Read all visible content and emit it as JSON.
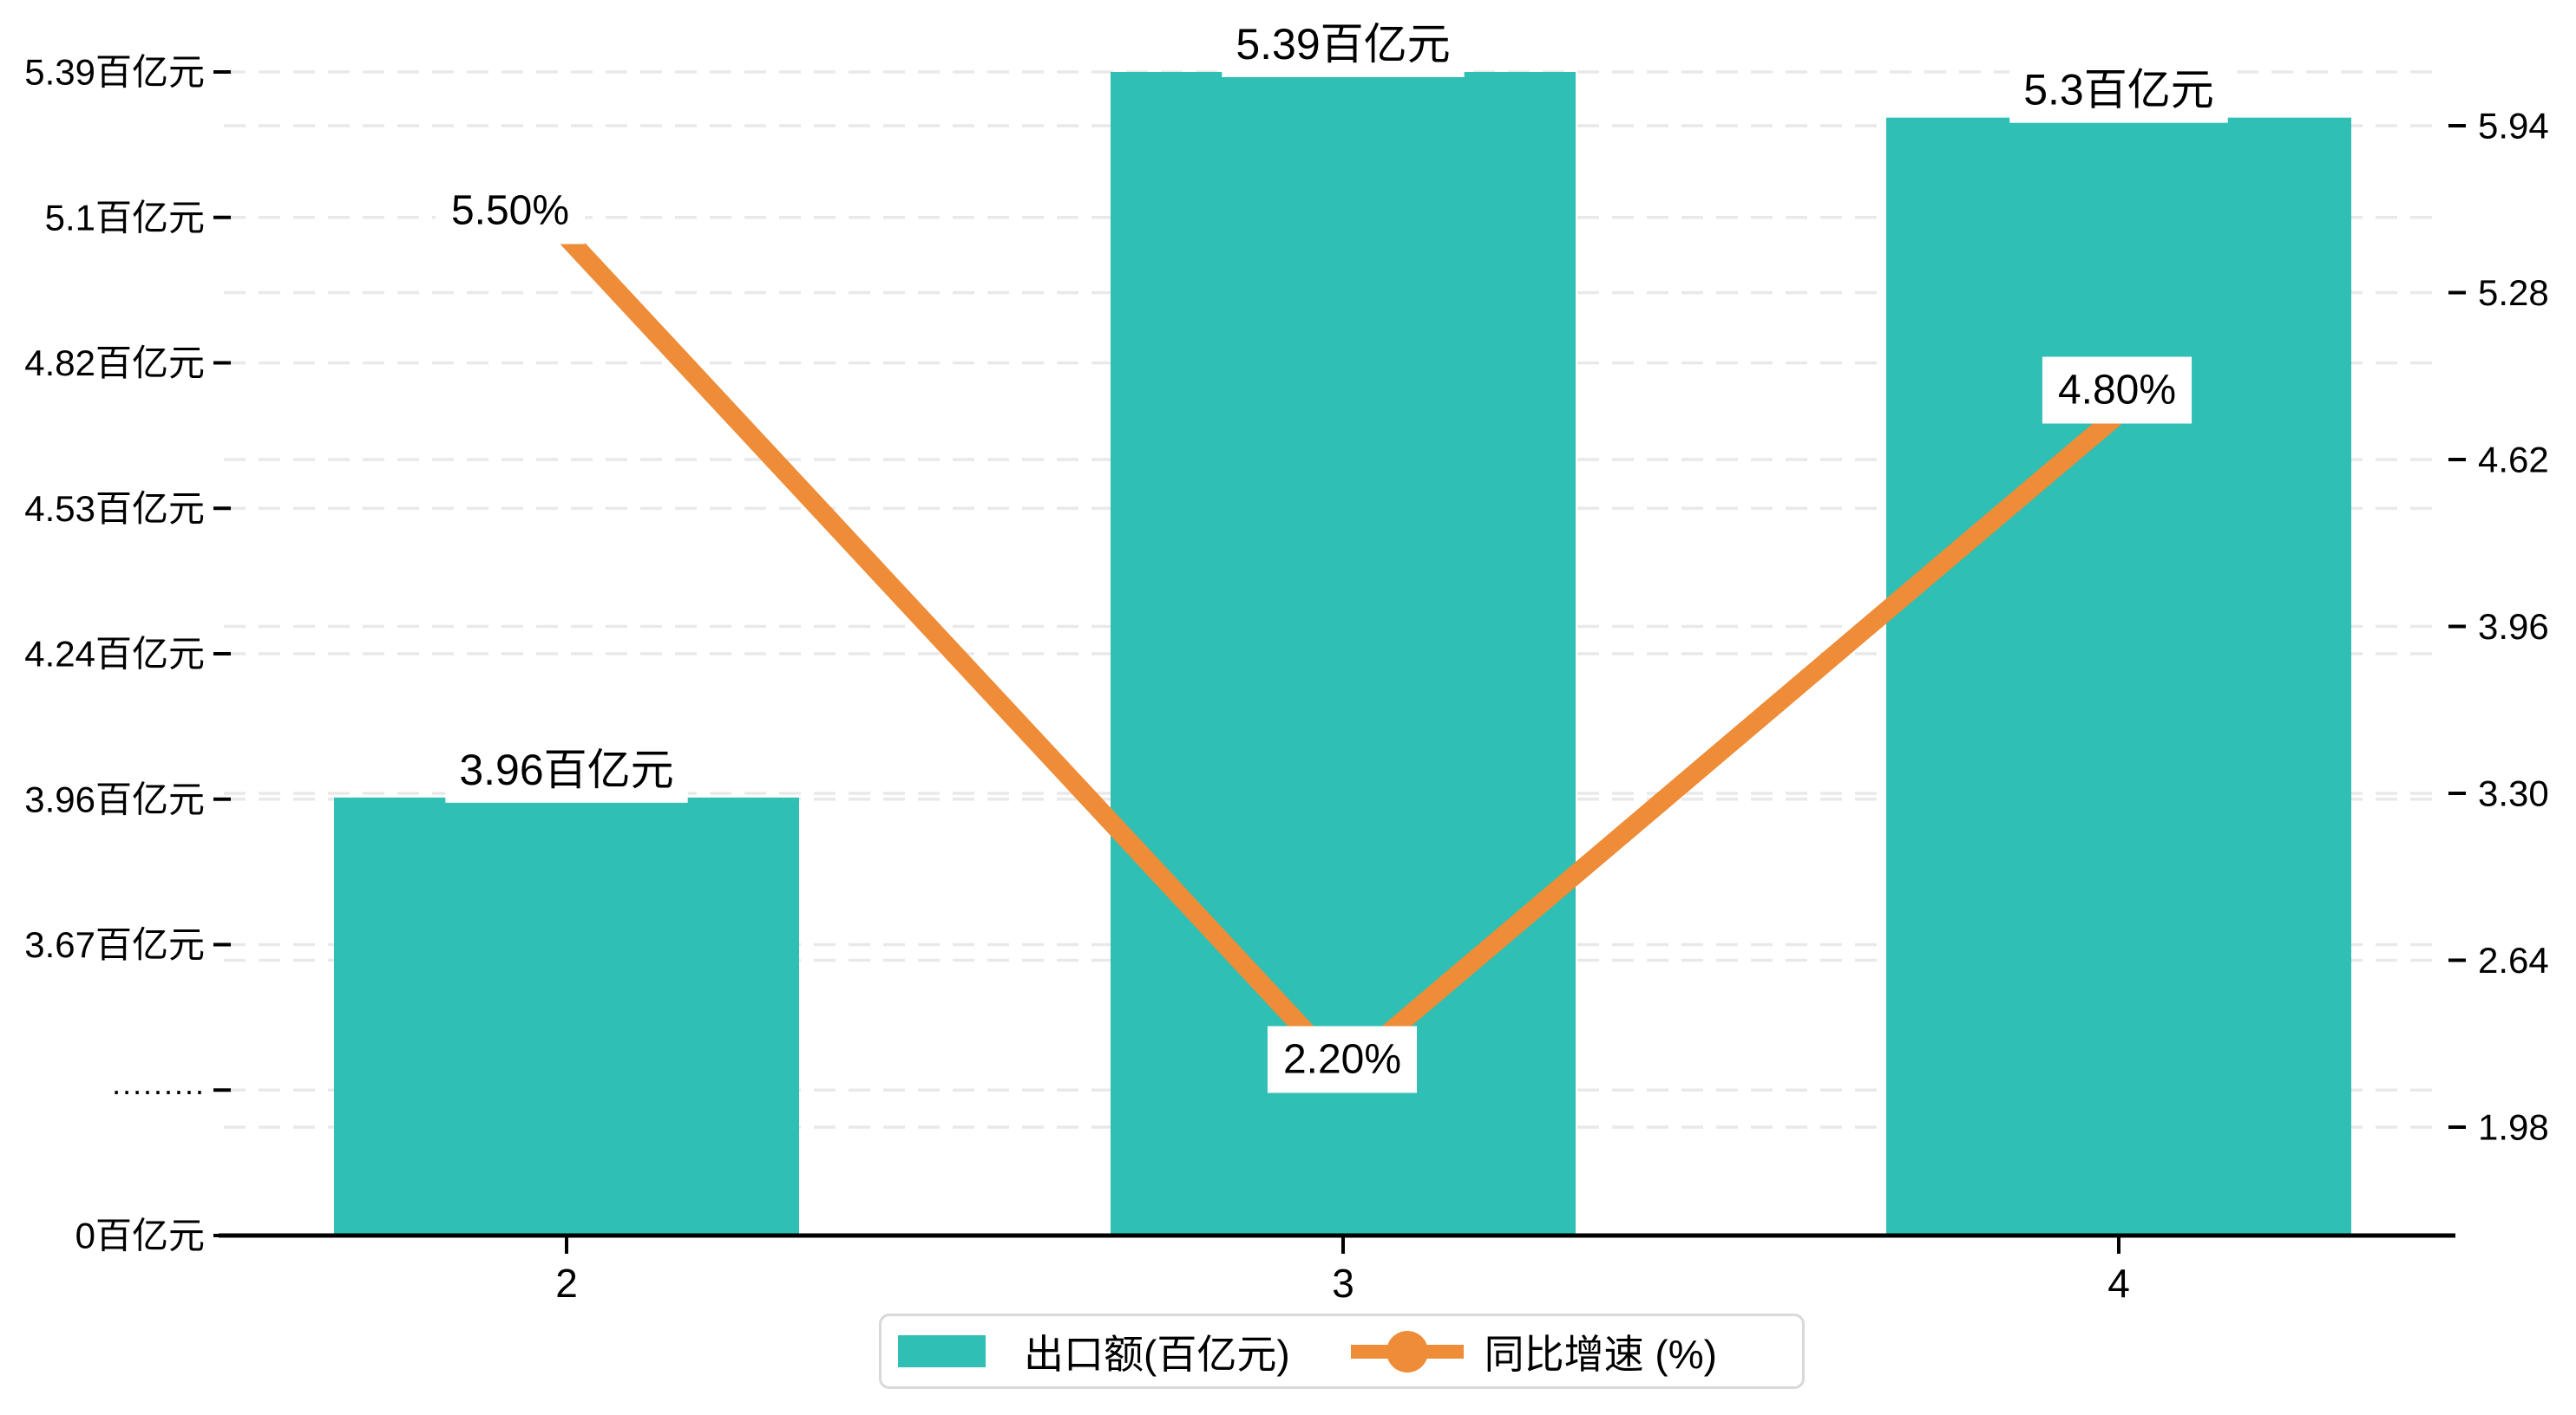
{
  "chart_data": {
    "type": "combo",
    "title": "",
    "categories": [
      "2",
      "3",
      "4"
    ],
    "series": [
      {
        "name": "出口额(百亿元)",
        "type": "bar",
        "axis": "left",
        "color": "#2fbfb4",
        "values": [
          3.96,
          5.39,
          5.3
        ],
        "point_labels": [
          "3.96百亿元",
          "5.39百亿元",
          "5.3百亿元"
        ]
      },
      {
        "name": "同比增速 (%)",
        "type": "line",
        "axis": "right",
        "color": "#ee8c38",
        "values": [
          5.5,
          2.2,
          4.8
        ],
        "point_labels": [
          "5.50%",
          "2.20%",
          "4.80%"
        ]
      }
    ],
    "x_axis": {
      "ticks": [
        "2",
        "3",
        "4"
      ]
    },
    "left_axis": {
      "unit": "百亿元",
      "ticks": [
        "5.39百亿元",
        "5.1百亿元",
        "4.82百亿元",
        "4.53百亿元",
        "4.24百亿元",
        "3.96百亿元",
        "3.67百亿元",
        "·········",
        "0百亿元"
      ],
      "tick_values_top": [
        5.39,
        5.1,
        4.82,
        4.53,
        4.24,
        3.96,
        3.67
      ],
      "axis_break": true,
      "break_symbol": "·········",
      "range_top": [
        3.67,
        5.39
      ]
    },
    "right_axis": {
      "ticks": [
        "5.94",
        "5.28",
        "4.62",
        "3.96",
        "3.30",
        "2.64",
        "1.98"
      ],
      "range": [
        1.98,
        5.94
      ]
    },
    "legend": {
      "position": "bottom"
    },
    "grid": {
      "on": true,
      "style": "dashed",
      "color": "#e9e9e9"
    },
    "colors": {
      "bar": "#2fbfb4",
      "line": "#ee8c38",
      "axis": "#000000",
      "label_box": "#ffffff"
    }
  }
}
